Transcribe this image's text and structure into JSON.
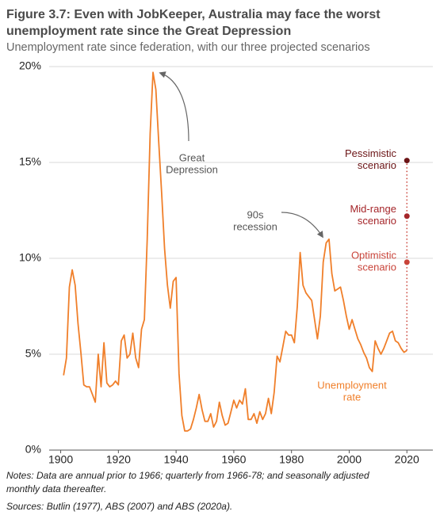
{
  "chart_data": {
    "type": "line",
    "title": [
      "Figure 3.7: Even with JobKeeper, Australia may face the worst",
      "unemployment rate since the Great Depression"
    ],
    "subtitle": "Unemployment rate since federation, with our three projected scenarios",
    "x": [
      1901,
      1902,
      1903,
      1904,
      1905,
      1906,
      1907,
      1908,
      1909,
      1910,
      1911,
      1912,
      1913,
      1914,
      1915,
      1916,
      1917,
      1918,
      1919,
      1920,
      1921,
      1922,
      1923,
      1924,
      1925,
      1926,
      1927,
      1928,
      1929,
      1930,
      1931,
      1932,
      1933,
      1934,
      1935,
      1936,
      1937,
      1938,
      1939,
      1940,
      1941,
      1942,
      1943,
      1944,
      1945,
      1946,
      1947,
      1948,
      1949,
      1950,
      1951,
      1952,
      1953,
      1954,
      1955,
      1956,
      1957,
      1958,
      1959,
      1960,
      1961,
      1962,
      1963,
      1964,
      1965,
      1966,
      1967,
      1968,
      1969,
      1970,
      1971,
      1972,
      1973,
      1974,
      1975,
      1976,
      1977,
      1978,
      1979,
      1980,
      1981,
      1982,
      1983,
      1984,
      1985,
      1986,
      1987,
      1988,
      1989,
      1990,
      1991,
      1992,
      1993,
      1994,
      1995,
      1996,
      1997,
      1998,
      1999,
      2000,
      2001,
      2002,
      2003,
      2004,
      2005,
      2006,
      2007,
      2008,
      2009,
      2010,
      2011,
      2012,
      2013,
      2014,
      2015,
      2016,
      2017,
      2018,
      2019,
      2020
    ],
    "series": [
      {
        "color": "#f07f2a",
        "values": [
          3.9,
          4.8,
          8.5,
          9.4,
          8.6,
          6.6,
          5.1,
          3.4,
          3.3,
          3.3,
          2.9,
          2.5,
          5.0,
          3.3,
          5.6,
          3.5,
          3.3,
          3.4,
          3.6,
          3.4,
          5.7,
          6.0,
          4.8,
          5.0,
          6.1,
          4.8,
          4.3,
          6.3,
          6.8,
          11.0,
          16.5,
          19.7,
          18.8,
          16.0,
          13.4,
          10.5,
          8.6,
          7.4,
          8.8,
          9.0,
          4.0,
          1.8,
          1.0,
          1.0,
          1.1,
          1.6,
          2.2,
          2.9,
          2.1,
          1.5,
          1.5,
          1.9,
          1.2,
          1.5,
          2.5,
          1.8,
          1.3,
          1.4,
          2.0,
          2.6,
          2.2,
          2.6,
          2.4,
          3.2,
          1.6,
          1.6,
          1.9,
          1.4,
          2.0,
          1.6,
          1.9,
          2.7,
          1.9,
          3.0,
          4.9,
          4.6,
          5.4,
          6.2,
          6.0,
          6.0,
          5.6,
          7.5,
          10.3,
          8.6,
          8.2,
          8.0,
          7.8,
          6.8,
          5.8,
          7.0,
          9.8,
          10.8,
          11.0,
          9.2,
          8.3,
          8.4,
          8.5,
          7.8,
          7.0,
          6.3,
          6.8,
          6.3,
          5.8,
          5.5,
          5.1,
          4.8,
          4.3,
          4.1,
          5.7,
          5.3,
          5.0,
          5.3,
          5.7,
          6.1,
          6.2,
          5.7,
          5.6,
          5.3,
          5.1,
          5.2
        ]
      }
    ],
    "xlim": [
      1896,
      2029
    ],
    "xticks": [
      1900,
      1920,
      1940,
      1960,
      1980,
      2000,
      2020
    ],
    "ylim": [
      0,
      20
    ],
    "yticks": [
      {
        "value": 0,
        "label": "0%"
      },
      {
        "value": 5,
        "label": "5%"
      },
      {
        "value": 10,
        "label": "10%"
      },
      {
        "value": 15,
        "label": "15%"
      },
      {
        "value": 20,
        "label": "20%"
      }
    ],
    "grid": true,
    "scenario_x": 2020,
    "scenarios": [
      {
        "lines": [
          "Pessimistic",
          "scenario"
        ],
        "value": 15.1,
        "color": "#6b1416"
      },
      {
        "lines": [
          "Mid-range",
          "scenario"
        ],
        "value": 12.2,
        "color": "#a5262a"
      },
      {
        "lines": [
          "Optimistic",
          "scenario"
        ],
        "value": 9.8,
        "color": "#c9443a"
      }
    ],
    "annotations": [
      {
        "lines": [
          "Great",
          "Depression"
        ]
      },
      {
        "lines": [
          "90s",
          "recession"
        ]
      },
      {
        "lines": [
          "Unemployment",
          "rate"
        ]
      }
    ],
    "notes": [
      "Notes: Data are annual prior to 1966; quarterly from 1966-78; and seasonally adjusted",
      "monthly data thereafter."
    ],
    "sources": "Sources: Butlin (1977), ABS (2007) and ABS (2020a)."
  }
}
